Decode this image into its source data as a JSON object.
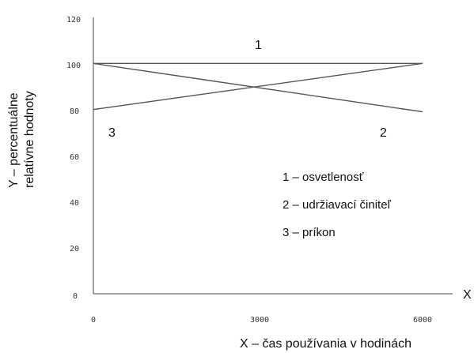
{
  "chart_data": {
    "type": "line",
    "xlabel": "X – čas používania v hodinách",
    "x_axis_letter": "X",
    "ylabel_line1": "Y – percentuálne",
    "ylabel_line2": "relatívne hodnoty",
    "xlim": [
      0,
      6000
    ],
    "ylim": [
      0,
      120
    ],
    "x_ticks": [
      "0",
      "3000",
      "6000"
    ],
    "y_ticks": [
      "0",
      "20",
      "40",
      "60",
      "80",
      "100",
      "120"
    ],
    "grid": false,
    "legend": [
      "1 – osvetlenosť",
      "2 – udržiavací činiteľ",
      "3 – príkon"
    ],
    "series": [
      {
        "name": "1",
        "x": [
          0,
          6000
        ],
        "values": [
          100,
          100
        ]
      },
      {
        "name": "2",
        "x": [
          0,
          6000
        ],
        "values": [
          100,
          79
        ]
      },
      {
        "name": "3",
        "x": [
          0,
          6000
        ],
        "values": [
          80,
          100
        ]
      }
    ],
    "colors": {
      "line": "#555555",
      "axis": "#444444"
    }
  }
}
